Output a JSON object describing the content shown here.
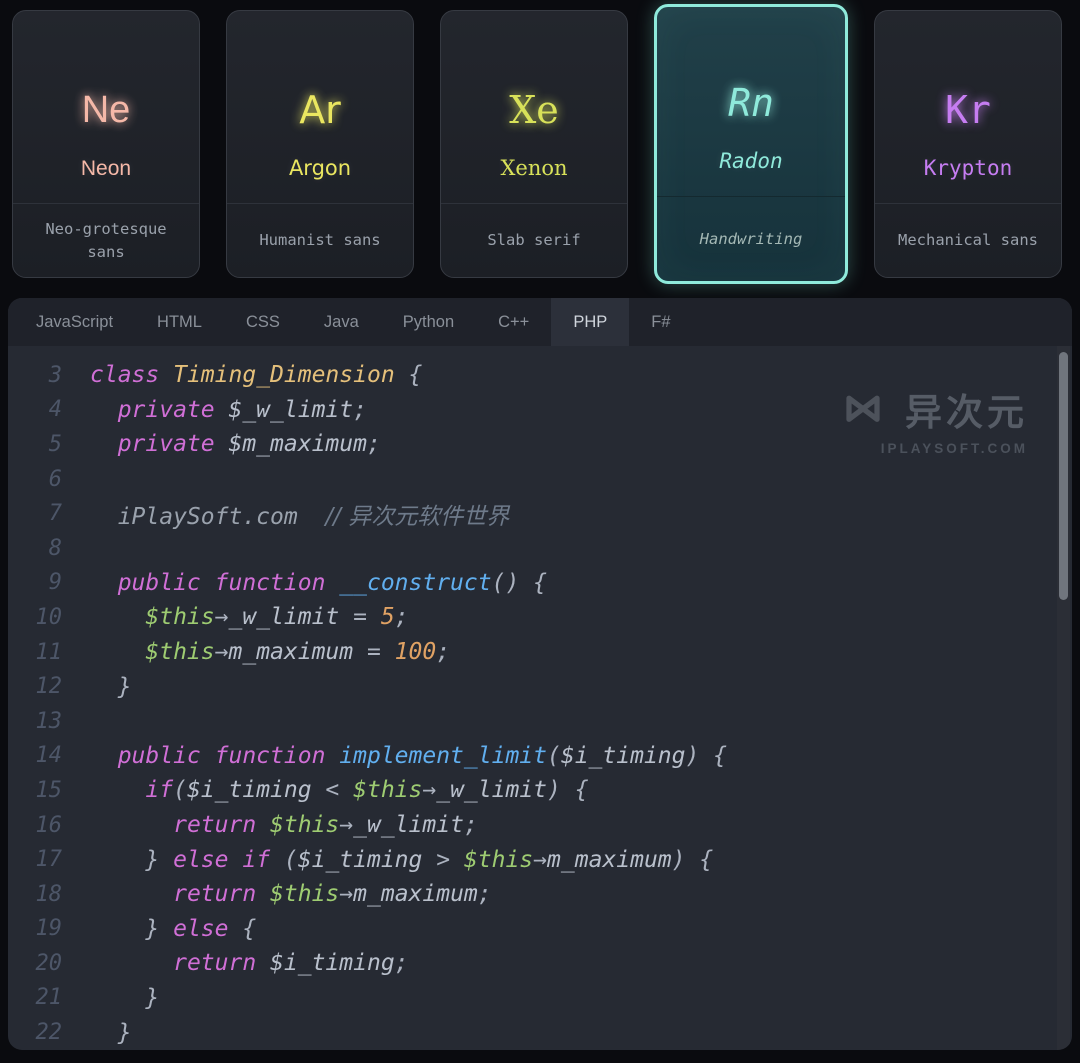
{
  "cards": [
    {
      "symbol": "Ne",
      "name": "Neon",
      "desc": "Neo-grotesque sans",
      "accent": "#f5b8a8",
      "selected": false
    },
    {
      "symbol": "Ar",
      "name": "Argon",
      "desc": "Humanist sans",
      "accent": "#eae660",
      "selected": false
    },
    {
      "symbol": "Xe",
      "name": "Xenon",
      "desc": "Slab serif",
      "accent": "#d8e159",
      "selected": false
    },
    {
      "symbol": "Rn",
      "name": "Radon",
      "desc": "Handwriting",
      "accent": "#8feadb",
      "selected": true
    },
    {
      "symbol": "Kr",
      "name": "Krypton",
      "desc": "Mechanical sans",
      "accent": "#c67df2",
      "selected": false
    }
  ],
  "editor": {
    "tabs": [
      {
        "label": "JavaScript",
        "selected": false
      },
      {
        "label": "HTML",
        "selected": false
      },
      {
        "label": "CSS",
        "selected": false
      },
      {
        "label": "Java",
        "selected": false
      },
      {
        "label": "Python",
        "selected": false
      },
      {
        "label": "C++",
        "selected": false
      },
      {
        "label": "PHP",
        "selected": true
      },
      {
        "label": "F#",
        "selected": false
      }
    ],
    "syntax_colors": {
      "keyword": "#d06fd6",
      "type": "#e5c07b",
      "function": "#61afef",
      "variable": "#b9c0cc",
      "this": "#9ecc72",
      "number": "#e0a264",
      "punct": "#abb2bf",
      "site": "#9aa2ad",
      "comment": "#6e7a8a",
      "line_number": "#4d5668"
    },
    "lines": [
      {
        "num": 3,
        "indent": 0,
        "seg": [
          [
            "class",
            "kw"
          ],
          [
            " "
          ],
          [
            "Timing_Dimension",
            "type"
          ],
          [
            " {",
            "pun"
          ]
        ]
      },
      {
        "num": 4,
        "indent": 1,
        "seg": [
          [
            "private",
            "kw"
          ],
          [
            " "
          ],
          [
            "$_w_limit",
            "var"
          ],
          [
            ";",
            "pun"
          ]
        ]
      },
      {
        "num": 5,
        "indent": 1,
        "seg": [
          [
            "private",
            "kw"
          ],
          [
            " "
          ],
          [
            "$m_maximum",
            "var"
          ],
          [
            ";",
            "pun"
          ]
        ]
      },
      {
        "num": 6,
        "indent": 0,
        "seg": []
      },
      {
        "num": 7,
        "indent": 1,
        "seg": [
          [
            "iPlaySoft.com",
            "site"
          ],
          [
            "  "
          ],
          [
            "// 异次元软件世界",
            "cmt"
          ]
        ]
      },
      {
        "num": 8,
        "indent": 0,
        "seg": []
      },
      {
        "num": 9,
        "indent": 1,
        "seg": [
          [
            "public",
            "kw"
          ],
          [
            " "
          ],
          [
            "function",
            "kw"
          ],
          [
            " "
          ],
          [
            "__construct",
            "fn"
          ],
          [
            "() {",
            "pun"
          ]
        ]
      },
      {
        "num": 10,
        "indent": 2,
        "seg": [
          [
            "$this",
            "ths"
          ],
          [
            "→",
            "pun"
          ],
          [
            "_w_limit",
            "var"
          ],
          [
            " = ",
            "pun"
          ],
          [
            "5",
            "num"
          ],
          [
            ";",
            "pun"
          ]
        ]
      },
      {
        "num": 11,
        "indent": 2,
        "seg": [
          [
            "$this",
            "ths"
          ],
          [
            "→",
            "pun"
          ],
          [
            "m_maximum",
            "var"
          ],
          [
            " = ",
            "pun"
          ],
          [
            "100",
            "num"
          ],
          [
            ";",
            "pun"
          ]
        ]
      },
      {
        "num": 12,
        "indent": 1,
        "seg": [
          [
            "}",
            "pun"
          ]
        ]
      },
      {
        "num": 13,
        "indent": 0,
        "seg": []
      },
      {
        "num": 14,
        "indent": 1,
        "seg": [
          [
            "public",
            "kw"
          ],
          [
            " "
          ],
          [
            "function",
            "kw"
          ],
          [
            " "
          ],
          [
            "implement_limit",
            "fn"
          ],
          [
            "(",
            "pun"
          ],
          [
            "$i_timing",
            "var"
          ],
          [
            ") {",
            "pun"
          ]
        ]
      },
      {
        "num": 15,
        "indent": 2,
        "seg": [
          [
            "if",
            "kw"
          ],
          [
            "(",
            "pun"
          ],
          [
            "$i_timing",
            "var"
          ],
          [
            " < ",
            "pun"
          ],
          [
            "$this",
            "ths"
          ],
          [
            "→",
            "pun"
          ],
          [
            "_w_limit",
            "var"
          ],
          [
            ") {",
            "pun"
          ]
        ]
      },
      {
        "num": 16,
        "indent": 3,
        "seg": [
          [
            "return",
            "kw"
          ],
          [
            " "
          ],
          [
            "$this",
            "ths"
          ],
          [
            "→",
            "pun"
          ],
          [
            "_w_limit",
            "var"
          ],
          [
            ";",
            "pun"
          ]
        ]
      },
      {
        "num": 17,
        "indent": 2,
        "seg": [
          [
            "} ",
            "pun"
          ],
          [
            "else",
            "kw"
          ],
          [
            " "
          ],
          [
            "if",
            "kw"
          ],
          [
            " (",
            "pun"
          ],
          [
            "$i_timing",
            "var"
          ],
          [
            " > ",
            "pun"
          ],
          [
            "$this",
            "ths"
          ],
          [
            "→",
            "pun"
          ],
          [
            "m_maximum",
            "var"
          ],
          [
            ") {",
            "pun"
          ]
        ]
      },
      {
        "num": 18,
        "indent": 3,
        "seg": [
          [
            "return",
            "kw"
          ],
          [
            " "
          ],
          [
            "$this",
            "ths"
          ],
          [
            "→",
            "pun"
          ],
          [
            "m_maximum",
            "var"
          ],
          [
            ";",
            "pun"
          ]
        ]
      },
      {
        "num": 19,
        "indent": 2,
        "seg": [
          [
            "} ",
            "pun"
          ],
          [
            "else",
            "kw"
          ],
          [
            " {",
            "pun"
          ]
        ]
      },
      {
        "num": 20,
        "indent": 3,
        "seg": [
          [
            "return",
            "kw"
          ],
          [
            " "
          ],
          [
            "$i_timing",
            "var"
          ],
          [
            ";",
            "pun"
          ]
        ]
      },
      {
        "num": 21,
        "indent": 2,
        "seg": [
          [
            "}",
            "pun"
          ]
        ]
      },
      {
        "num": 22,
        "indent": 1,
        "seg": [
          [
            "}",
            "pun"
          ]
        ]
      }
    ]
  },
  "watermark": {
    "brand": "异次元",
    "site": "IPLAYSOFT.COM"
  }
}
